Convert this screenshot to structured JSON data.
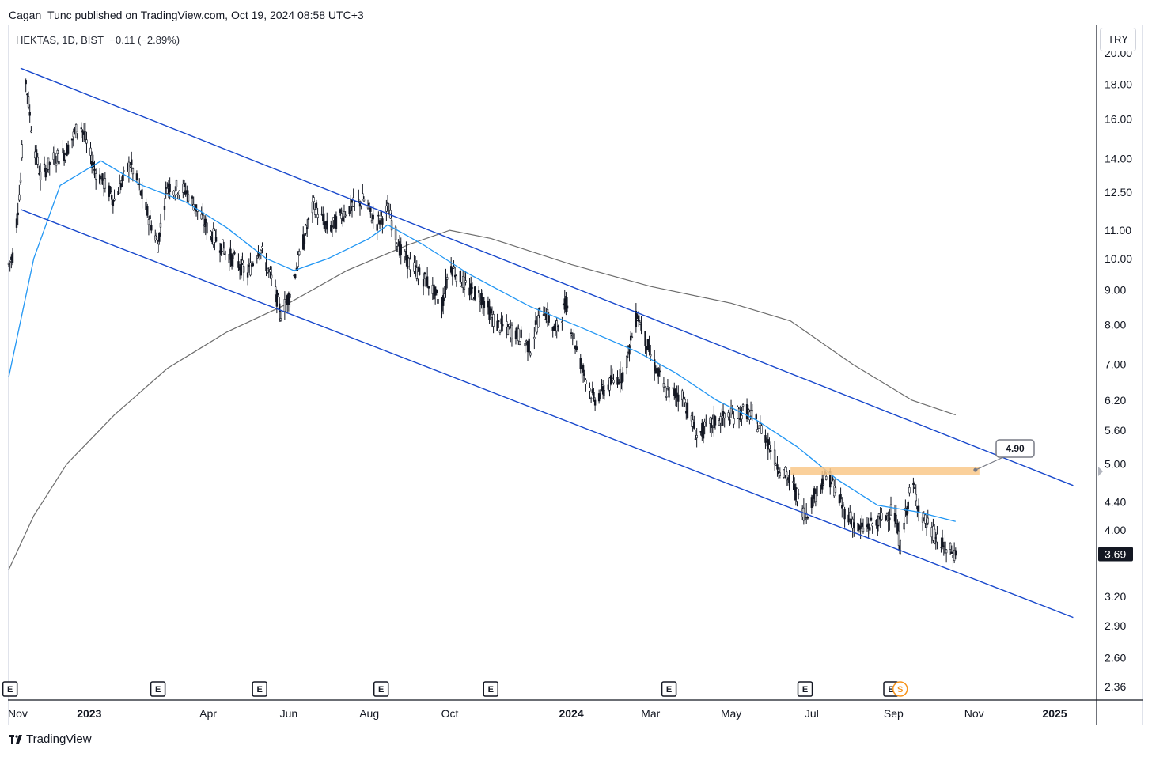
{
  "header": {
    "published": "Cagan_Tunc published on TradingView.com, Oct 19, 2024 08:58 UTC+3"
  },
  "symbol": {
    "name": "HEKTAS, 1D, BIST",
    "change": "−0.11 (−2.89%)"
  },
  "currency": "TRY",
  "footer": {
    "brand": "TradingView"
  },
  "colors": {
    "candle": "#131722",
    "ema_fast": "#2196f3",
    "ma_slow": "#6d6d6d",
    "channel": "#1848cc",
    "zone": "#f9c889",
    "axis": "#131722"
  },
  "icons": [
    "tradingview-logo-icon",
    "earnings-event-icon",
    "split-event-icon",
    "price-scale-arrow-icon"
  ],
  "chart_data": {
    "type": "candlestick",
    "scale": "log",
    "y_ticks": [
      2.36,
      2.6,
      2.9,
      3.2,
      4.0,
      4.4,
      5.0,
      5.6,
      6.2,
      7.0,
      8.0,
      9.0,
      10.0,
      11.0,
      12.5,
      14.0,
      16.0,
      18.0,
      20.0
    ],
    "y_tick_labels": [
      "2.36",
      "2.60",
      "2.90",
      "3.20",
      "4.00",
      "4.40",
      "5.00",
      "5.60",
      "6.20",
      "7.00",
      "8.00",
      "9.00",
      "10.00",
      "11.00",
      "12.50",
      "14.00",
      "16.00",
      "18.00",
      "20.00"
    ],
    "x_ticks": [
      {
        "label": "Nov",
        "date": "2022-11-01",
        "bold": false
      },
      {
        "label": "2023",
        "date": "2023-01-01",
        "bold": true
      },
      {
        "label": "Apr",
        "date": "2023-04-01",
        "bold": false
      },
      {
        "label": "Jun",
        "date": "2023-06-01",
        "bold": false
      },
      {
        "label": "Aug",
        "date": "2023-08-01",
        "bold": false
      },
      {
        "label": "Oct",
        "date": "2023-10-01",
        "bold": false
      },
      {
        "label": "2024",
        "date": "2024-01-01",
        "bold": true
      },
      {
        "label": "Mar",
        "date": "2024-03-01",
        "bold": false
      },
      {
        "label": "May",
        "date": "2024-05-01",
        "bold": false
      },
      {
        "label": "Jul",
        "date": "2024-07-01",
        "bold": false
      },
      {
        "label": "Sep",
        "date": "2024-09-01",
        "bold": false
      },
      {
        "label": "Nov",
        "date": "2024-11-01",
        "bold": false
      },
      {
        "label": "2025",
        "date": "2025-01-01",
        "bold": true
      }
    ],
    "price_path": [
      [
        "2022-11-01",
        9.8
      ],
      [
        "2022-11-05",
        10.2
      ],
      [
        "2022-11-10",
        13.0
      ],
      [
        "2022-11-14",
        18.2
      ],
      [
        "2022-11-19",
        15.0
      ],
      [
        "2022-11-25",
        13.2
      ],
      [
        "2022-12-05",
        14.0
      ],
      [
        "2022-12-14",
        14.3
      ],
      [
        "2022-12-25",
        15.8
      ],
      [
        "2023-01-05",
        13.5
      ],
      [
        "2023-01-20",
        12.2
      ],
      [
        "2023-02-01",
        13.8
      ],
      [
        "2023-02-15",
        11.5
      ],
      [
        "2023-02-22",
        10.5
      ],
      [
        "2023-03-01",
        12.8
      ],
      [
        "2023-03-15",
        12.6
      ],
      [
        "2023-04-01",
        11.0
      ],
      [
        "2023-04-15",
        10.2
      ],
      [
        "2023-05-01",
        9.5
      ],
      [
        "2023-05-10",
        10.4
      ],
      [
        "2023-05-20",
        9.2
      ],
      [
        "2023-05-26",
        8.3
      ],
      [
        "2023-06-01",
        8.8
      ],
      [
        "2023-06-10",
        10.2
      ],
      [
        "2023-06-20",
        12.0
      ],
      [
        "2023-07-01",
        11.0
      ],
      [
        "2023-07-15",
        11.8
      ],
      [
        "2023-07-28",
        12.2
      ],
      [
        "2023-08-06",
        11.2
      ],
      [
        "2023-08-15",
        11.8
      ],
      [
        "2023-08-25",
        10.2
      ],
      [
        "2023-09-05",
        9.6
      ],
      [
        "2023-09-15",
        9.2
      ],
      [
        "2023-09-25",
        8.5
      ],
      [
        "2023-10-01",
        9.8
      ],
      [
        "2023-10-15",
        9.0
      ],
      [
        "2023-10-25",
        8.8
      ],
      [
        "2023-11-05",
        8.0
      ],
      [
        "2023-11-20",
        7.8
      ],
      [
        "2023-12-01",
        7.4
      ],
      [
        "2023-12-10",
        8.5
      ],
      [
        "2023-12-20",
        7.8
      ],
      [
        "2023-12-28",
        8.6
      ],
      [
        "2024-01-06",
        7.2
      ],
      [
        "2024-01-18",
        6.2
      ],
      [
        "2024-02-01",
        6.6
      ],
      [
        "2024-02-10",
        6.8
      ],
      [
        "2024-02-20",
        8.3
      ],
      [
        "2024-03-01",
        7.2
      ],
      [
        "2024-03-12",
        6.4
      ],
      [
        "2024-03-25",
        6.3
      ],
      [
        "2024-04-05",
        5.5
      ],
      [
        "2024-04-20",
        5.8
      ],
      [
        "2024-05-05",
        5.9
      ],
      [
        "2024-05-12",
        6.0
      ],
      [
        "2024-05-25",
        5.6
      ],
      [
        "2024-06-05",
        5.0
      ],
      [
        "2024-06-18",
        4.6
      ],
      [
        "2024-06-26",
        4.2
      ],
      [
        "2024-07-08",
        4.7
      ],
      [
        "2024-07-14",
        4.8
      ],
      [
        "2024-07-25",
        4.3
      ],
      [
        "2024-08-06",
        4.0
      ],
      [
        "2024-08-20",
        4.1
      ],
      [
        "2024-09-01",
        4.3
      ],
      [
        "2024-09-06",
        3.8
      ],
      [
        "2024-09-15",
        4.7
      ],
      [
        "2024-09-22",
        4.2
      ],
      [
        "2024-10-01",
        3.95
      ],
      [
        "2024-10-10",
        3.75
      ],
      [
        "2024-10-18",
        3.69
      ]
    ],
    "ema_fast": [
      [
        "2022-11-01",
        6.7
      ],
      [
        "2022-11-20",
        10.0
      ],
      [
        "2022-12-10",
        12.8
      ],
      [
        "2023-01-10",
        13.9
      ],
      [
        "2023-02-10",
        12.8
      ],
      [
        "2023-03-15",
        12.1
      ],
      [
        "2023-04-15",
        11.1
      ],
      [
        "2023-05-15",
        10.0
      ],
      [
        "2023-06-05",
        9.6
      ],
      [
        "2023-07-01",
        10.0
      ],
      [
        "2023-08-01",
        10.7
      ],
      [
        "2023-08-15",
        11.2
      ],
      [
        "2023-09-10",
        10.5
      ],
      [
        "2023-10-15",
        9.5
      ],
      [
        "2023-12-01",
        8.5
      ],
      [
        "2024-01-10",
        7.9
      ],
      [
        "2024-02-20",
        7.3
      ],
      [
        "2024-03-20",
        6.8
      ],
      [
        "2024-04-20",
        6.2
      ],
      [
        "2024-05-20",
        5.8
      ],
      [
        "2024-06-20",
        5.3
      ],
      [
        "2024-07-20",
        4.75
      ],
      [
        "2024-08-20",
        4.35
      ],
      [
        "2024-09-20",
        4.25
      ],
      [
        "2024-10-18",
        4.12
      ]
    ],
    "ma_slow": [
      [
        "2022-11-01",
        3.5
      ],
      [
        "2022-11-20",
        4.2
      ],
      [
        "2022-12-15",
        5.0
      ],
      [
        "2023-01-20",
        5.9
      ],
      [
        "2023-03-01",
        6.9
      ],
      [
        "2023-04-15",
        7.8
      ],
      [
        "2023-06-01",
        8.6
      ],
      [
        "2023-07-15",
        9.6
      ],
      [
        "2023-09-01",
        10.5
      ],
      [
        "2023-10-01",
        11.0
      ],
      [
        "2023-11-01",
        10.7
      ],
      [
        "2024-01-01",
        9.8
      ],
      [
        "2024-03-01",
        9.1
      ],
      [
        "2024-05-01",
        8.6
      ],
      [
        "2024-06-15",
        8.1
      ],
      [
        "2024-08-01",
        7.0
      ],
      [
        "2024-09-15",
        6.2
      ],
      [
        "2024-10-18",
        5.9
      ]
    ],
    "channel_upper": [
      [
        "2022-11-10",
        19.0
      ],
      [
        "2025-01-15",
        4.65
      ]
    ],
    "channel_lower": [
      [
        "2022-11-10",
        11.8
      ],
      [
        "2025-01-15",
        2.98
      ]
    ],
    "resistance_zone": {
      "from": "2024-06-15",
      "to": "2024-11-05",
      "low": 4.82,
      "high": 4.95
    },
    "callout_label": "4.90",
    "last_price": "3.69",
    "events": [
      {
        "date": "2022-11-02",
        "type": "E"
      },
      {
        "date": "2023-02-22",
        "type": "E"
      },
      {
        "date": "2023-05-10",
        "type": "E"
      },
      {
        "date": "2023-08-10",
        "type": "E"
      },
      {
        "date": "2023-11-01",
        "type": "E"
      },
      {
        "date": "2024-03-15",
        "type": "E"
      },
      {
        "date": "2024-06-26",
        "type": "E"
      },
      {
        "date": "2024-08-30",
        "type": "E"
      },
      {
        "date": "2024-09-06",
        "type": "S"
      }
    ]
  }
}
